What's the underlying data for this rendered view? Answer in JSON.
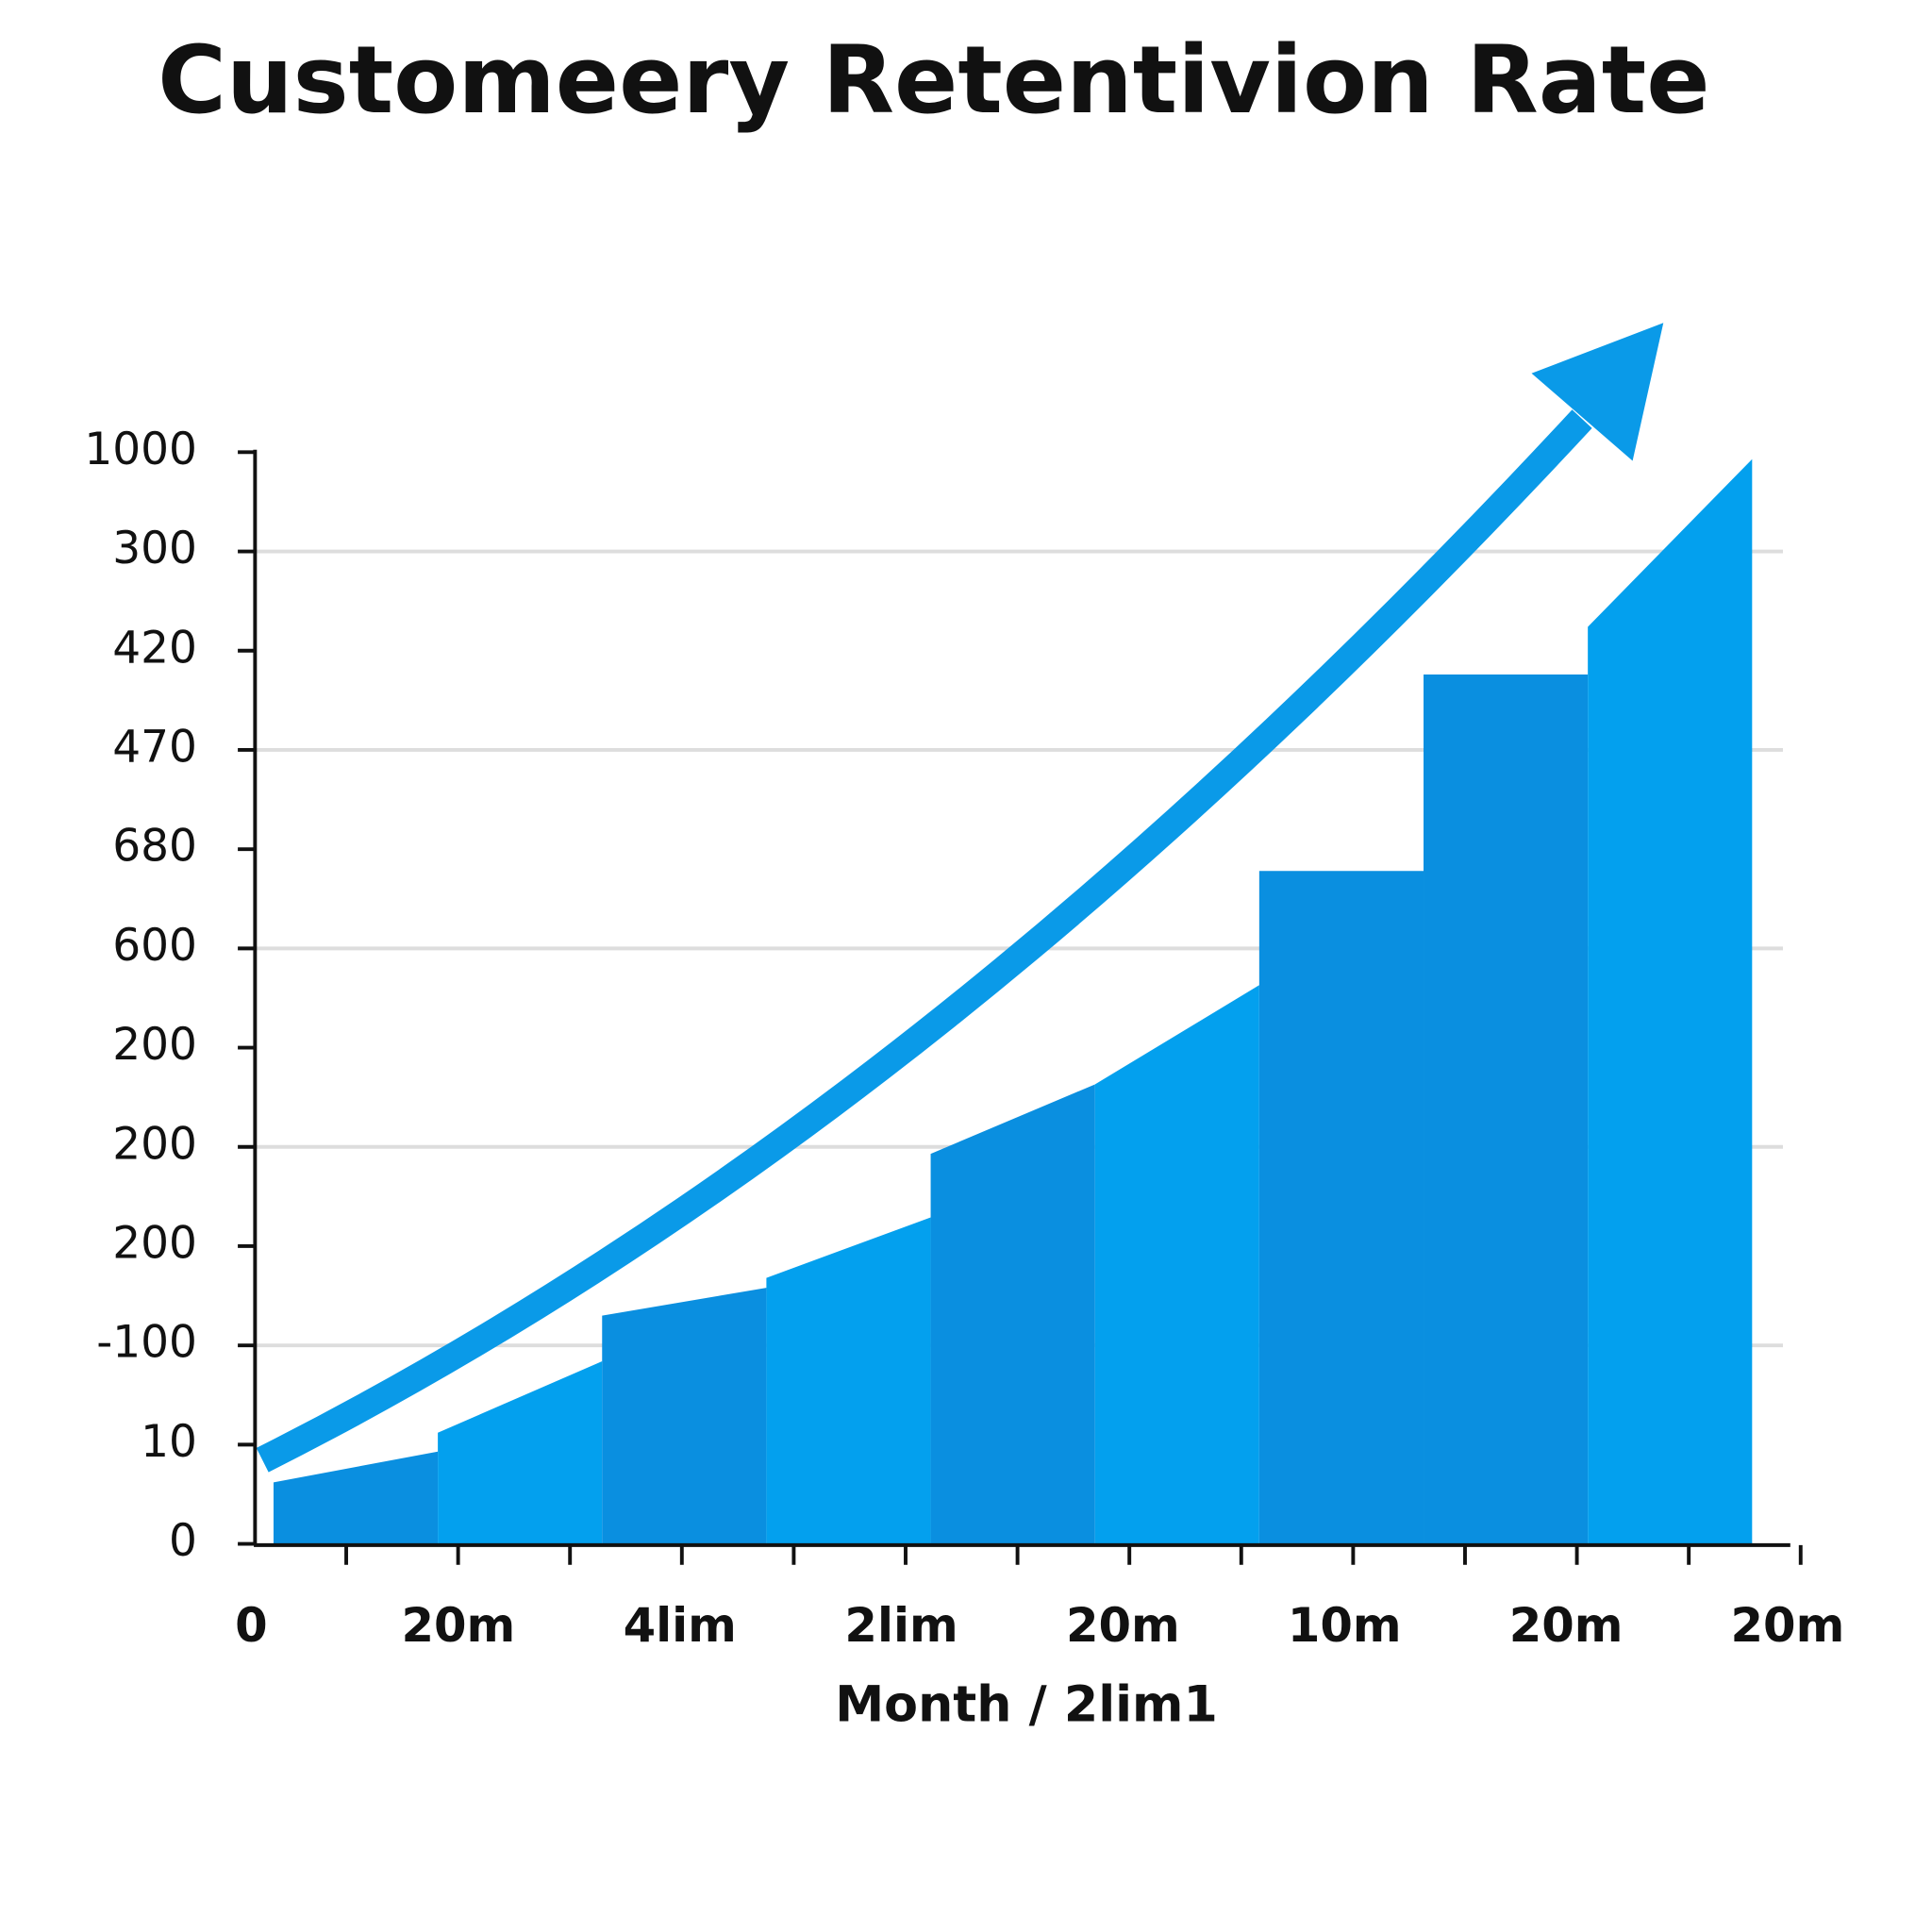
{
  "chart_data": {
    "type": "bar",
    "title": "Customeery Retentivion Rate",
    "x_label": "Month / 2lim1",
    "categories": [
      "0",
      "20m",
      "4lim",
      "2lim",
      "20m",
      "10m",
      "20m",
      "20m"
    ],
    "values": [
      [
        0.62,
        0.93
      ],
      [
        1.12,
        1.84
      ],
      [
        2.3,
        2.58
      ],
      [
        2.68,
        3.29
      ],
      [
        3.93,
        4.63
      ],
      [
        4.63,
        5.63
      ],
      [
        6.78,
        6.78
      ],
      [
        8.76,
        8.76
      ],
      [
        9.24,
        10.93
      ]
    ],
    "colors": [
      "#0a8fe0",
      "#03a0ee",
      "#0a8fe0",
      "#03a0ee",
      "#0a8fe0",
      "#03a0ee",
      "#0a8fe0",
      "#0a8fe0",
      "#03a0ee"
    ],
    "ylim": [
      0,
      11
    ],
    "yticks": [
      {
        "value": 0,
        "label": "0"
      },
      {
        "value": 1,
        "label": "10"
      },
      {
        "value": 2,
        "label": "-100"
      },
      {
        "value": 3,
        "label": "200"
      },
      {
        "value": 4,
        "label": "200"
      },
      {
        "value": 5,
        "label": "200"
      },
      {
        "value": 6,
        "label": "600"
      },
      {
        "value": 7,
        "label": "680"
      },
      {
        "value": 8,
        "label": "470"
      },
      {
        "value": 9,
        "label": "420"
      },
      {
        "value": 10,
        "label": "300"
      },
      {
        "value": 11,
        "label": "1000"
      }
    ],
    "grid": true
  }
}
